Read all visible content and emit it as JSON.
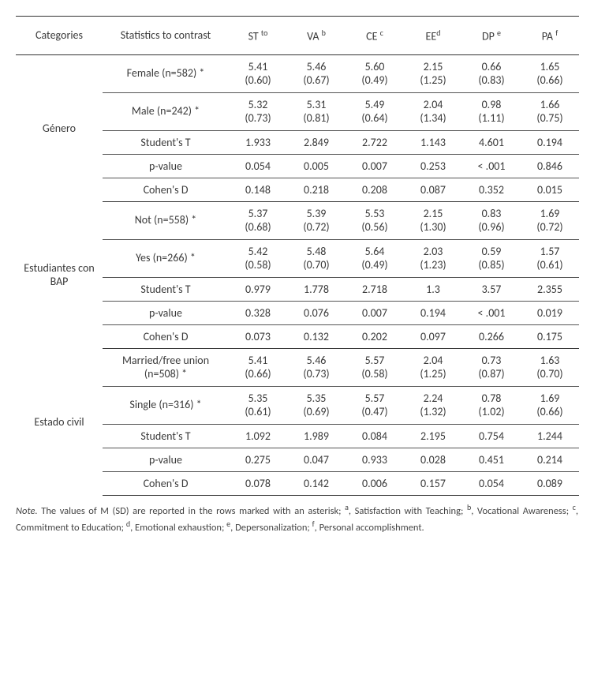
{
  "header": {
    "categories": "Categories",
    "stats": "Statistics to contrast",
    "cols": [
      {
        "label": "ST",
        "sup": "to"
      },
      {
        "label": "VA",
        "sup": "b"
      },
      {
        "label": "CE",
        "sup": "c"
      },
      {
        "label": "EE",
        "sup": "d"
      },
      {
        "label": "DP",
        "sup": "e"
      },
      {
        "label": "PA",
        "sup": "f"
      }
    ]
  },
  "groups": [
    {
      "category": "Género",
      "rows": [
        {
          "label": "Female (n=582) *",
          "two": true,
          "v": [
            [
              "5.41",
              "(0.60)"
            ],
            [
              "5.46",
              "(0.67)"
            ],
            [
              "5.60",
              "(0.49)"
            ],
            [
              "2.15",
              "(1.25)"
            ],
            [
              "0.66",
              "(0.83)"
            ],
            [
              "1.65",
              "(0.66)"
            ]
          ]
        },
        {
          "label": "Male (n=242) *",
          "two": true,
          "v": [
            [
              "5.32",
              "(0.73)"
            ],
            [
              "5.31",
              "(0.81)"
            ],
            [
              "5.49",
              "(0.64)"
            ],
            [
              "2.04",
              "(1.34)"
            ],
            [
              "0.98",
              "(1.11)"
            ],
            [
              "1.66",
              "(0.75)"
            ]
          ]
        },
        {
          "label": "Student's T",
          "two": false,
          "v": [
            "1.933",
            "2.849",
            "2.722",
            "1.143",
            "4.601",
            "0.194"
          ]
        },
        {
          "label": "p-value",
          "two": false,
          "v": [
            "0.054",
            "0.005",
            "0.007",
            "0.253",
            "< .001",
            "0.846"
          ]
        },
        {
          "label": "Cohen's D",
          "two": false,
          "v": [
            "0.148",
            "0.218",
            "0.208",
            "0.087",
            "0.352",
            "0.015"
          ]
        }
      ]
    },
    {
      "category": "Estudiantes con BAP",
      "rows": [
        {
          "label": "Not (n=558) *",
          "two": true,
          "v": [
            [
              "5.37",
              "(0.68)"
            ],
            [
              "5.39",
              "(0.72)"
            ],
            [
              "5.53",
              "(0.56)"
            ],
            [
              "2.15",
              "(1.30)"
            ],
            [
              "0.83",
              "(0.96)"
            ],
            [
              "1.69",
              "(0.72)"
            ]
          ]
        },
        {
          "label": "Yes (n=266) *",
          "two": true,
          "v": [
            [
              "5.42",
              "(0.58)"
            ],
            [
              "5.48",
              "(0.70)"
            ],
            [
              "5.64",
              "(0.49)"
            ],
            [
              "2.03",
              "(1.23)"
            ],
            [
              "0.59",
              "(0.85)"
            ],
            [
              "1.57",
              "(0.61)"
            ]
          ]
        },
        {
          "label": "Student's T",
          "two": false,
          "v": [
            "0.979",
            "1.778",
            "2.718",
            "1.3",
            "3.57",
            "2.355"
          ]
        },
        {
          "label": "p-value",
          "two": false,
          "v": [
            "0.328",
            "0.076",
            "0.007",
            "0.194",
            "< .001",
            "0.019"
          ]
        },
        {
          "label": "Cohen's D",
          "two": false,
          "v": [
            "0.073",
            "0.132",
            "0.202",
            "0.097",
            "0.266",
            "0.175"
          ]
        }
      ]
    },
    {
      "category": "Estado civil",
      "rows": [
        {
          "label": "Married/free union (n=508) *",
          "two": true,
          "v": [
            [
              "5.41",
              "(0.66)"
            ],
            [
              "5.46",
              "(0.73)"
            ],
            [
              "5.57",
              "(0.58)"
            ],
            [
              "2.04",
              "(1.25)"
            ],
            [
              "0.73",
              "(0.87)"
            ],
            [
              "1.63",
              "(0.70)"
            ]
          ]
        },
        {
          "label": "Single (n=316) *",
          "two": true,
          "v": [
            [
              "5.35",
              "(0.61)"
            ],
            [
              "5.35",
              "(0.69)"
            ],
            [
              "5.57",
              "(0.47)"
            ],
            [
              "2.24",
              "(1.32)"
            ],
            [
              "0.78",
              "(1.02)"
            ],
            [
              "1.69",
              "(0.66)"
            ]
          ]
        },
        {
          "label": "Student's T",
          "two": false,
          "v": [
            "1.092",
            "1.989",
            "0.084",
            "2.195",
            "0.754",
            "1.244"
          ]
        },
        {
          "label": "p-value",
          "two": false,
          "v": [
            "0.275",
            "0.047",
            "0.933",
            "0.028",
            "0.451",
            "0.214"
          ]
        },
        {
          "label": "Cohen's D",
          "two": false,
          "v": [
            "0.078",
            "0.142",
            "0.006",
            "0.157",
            "0.054",
            "0.089"
          ]
        }
      ]
    }
  ],
  "note": {
    "prefix": "Note.",
    "body": " The values of M (SD) are reported in the rows marked with an asterisk; ",
    "defs": [
      {
        "sup": "a",
        "text": ", Satisfaction with Teaching; "
      },
      {
        "sup": "b",
        "text": ", Vocational Awareness; "
      },
      {
        "sup": "c",
        "text": ", Commitment to Education; "
      },
      {
        "sup": "d",
        "text": ", Emotional exhaustion; "
      },
      {
        "sup": "e",
        "text": ", Depersonalization; "
      },
      {
        "sup": "f",
        "text": ", Personal accomplishment."
      }
    ]
  }
}
